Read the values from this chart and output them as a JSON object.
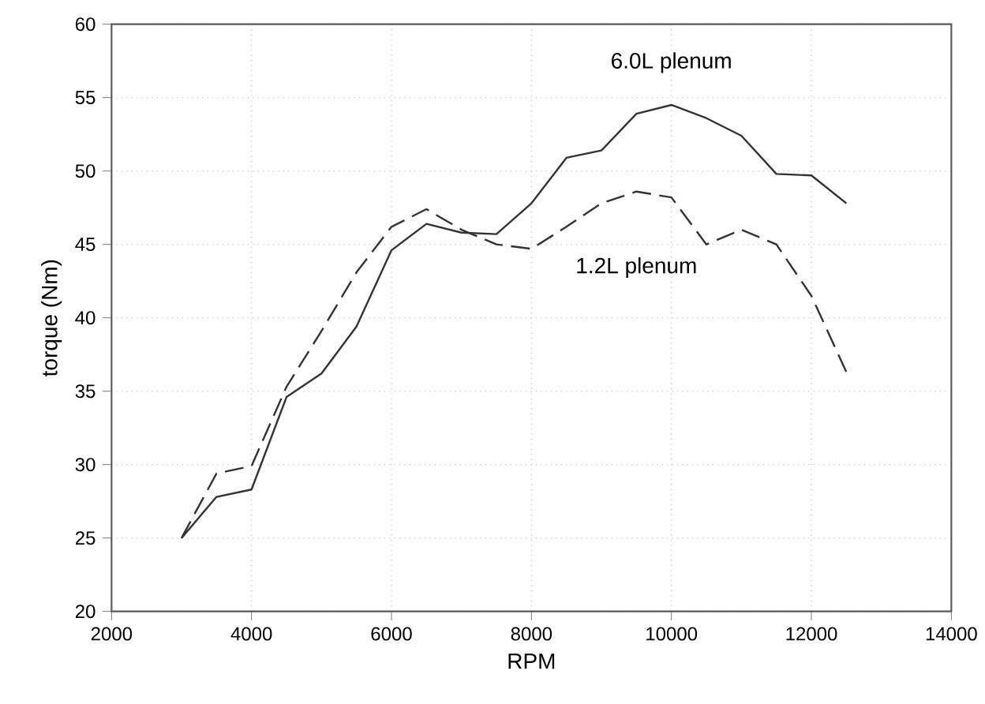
{
  "chart_data": {
    "type": "line",
    "xlabel": "RPM",
    "ylabel": "torque (Nm)",
    "xlim": [
      2000,
      14000
    ],
    "xticks": [
      2000,
      4000,
      6000,
      8000,
      10000,
      12000,
      14000
    ],
    "ylim": [
      20,
      60
    ],
    "yticks": [
      20,
      25,
      30,
      35,
      40,
      45,
      50,
      55,
      60
    ],
    "grid": true,
    "marker": "none",
    "x": [
      3000,
      3500,
      4000,
      4500,
      5000,
      5500,
      6000,
      6500,
      7000,
      7500,
      8000,
      8500,
      9000,
      9500,
      10000,
      10500,
      11000,
      11500,
      12000,
      12500
    ],
    "series": [
      {
        "name": "6.0L plenum",
        "color": "#333333",
        "line_style": "solid",
        "values": [
          25,
          27.8,
          28.3,
          34.6,
          36.2,
          39.4,
          44.6,
          46.4,
          45.8,
          45.7,
          47.8,
          50.9,
          51.4,
          53.9,
          54.5,
          53.6,
          52.4,
          49.8,
          49.7,
          47.8
        ]
      },
      {
        "name": "1.2L plenum",
        "color": "#333333",
        "line_style": "dashed",
        "values": [
          25,
          29.4,
          29.9,
          35.3,
          39.1,
          43.1,
          46.2,
          47.4,
          46.0,
          45.0,
          44.7,
          46.2,
          47.8,
          48.6,
          48.2,
          45.0,
          46.0,
          45.0,
          41.5,
          36.3
        ]
      }
    ]
  }
}
